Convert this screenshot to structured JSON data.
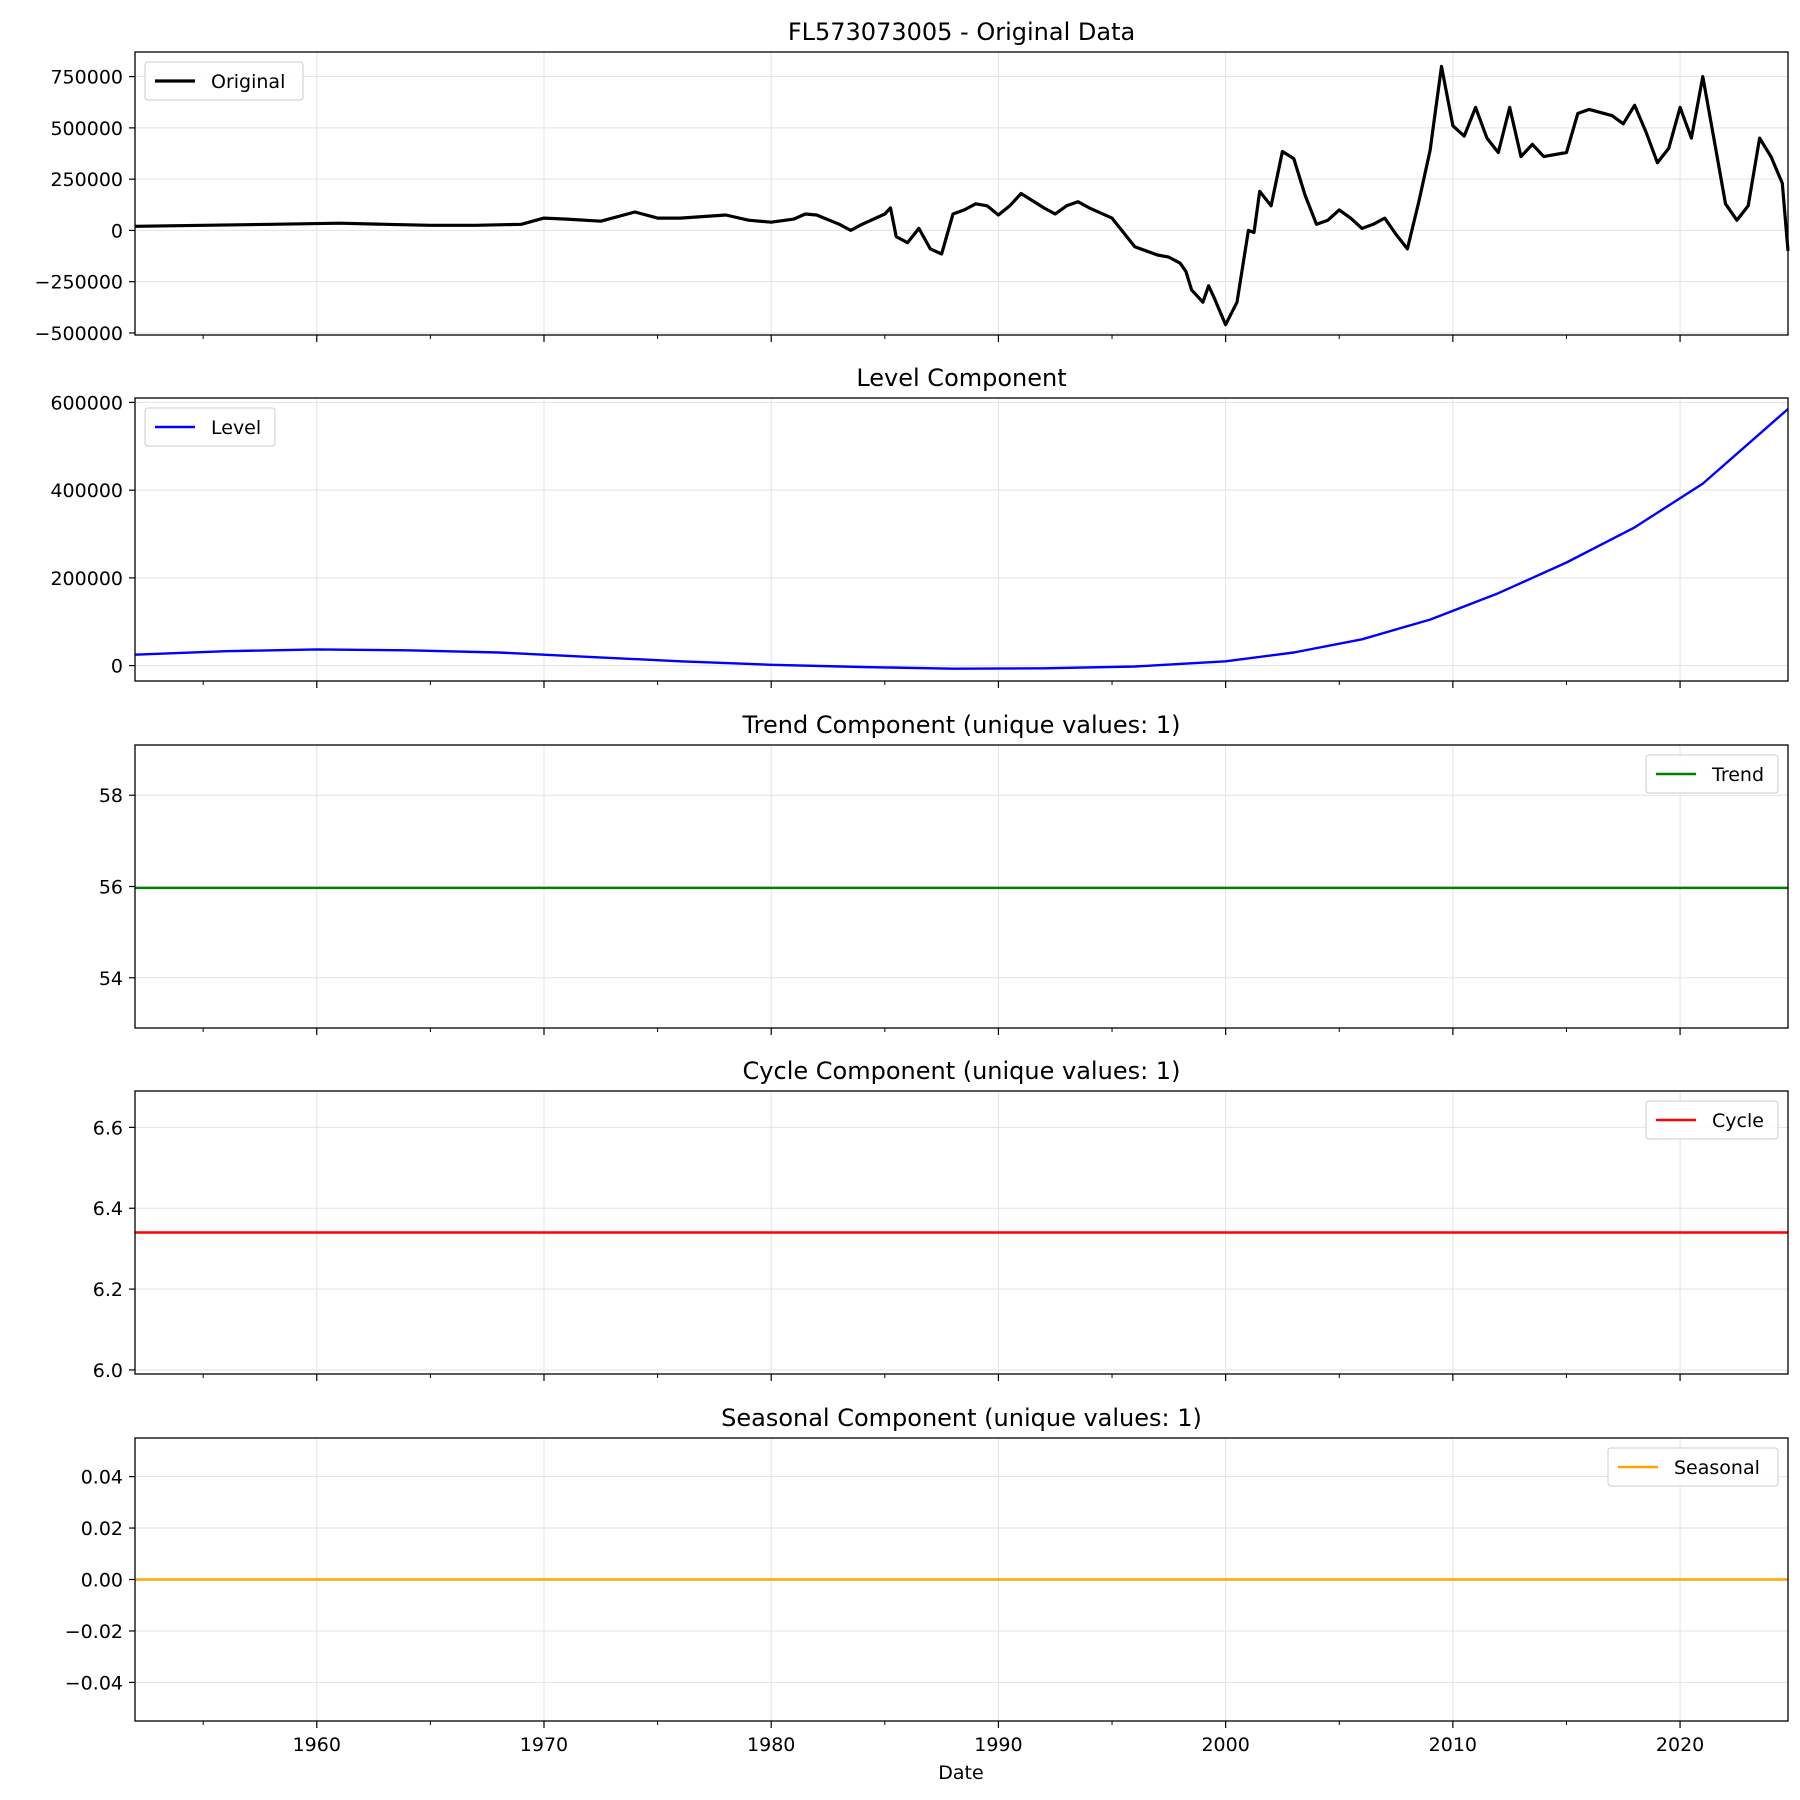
{
  "figure": {
    "xlabel": "Date",
    "x_range": [
      1952.0,
      2024.75
    ],
    "x_ticks": [
      1960,
      1970,
      1980,
      1990,
      2000,
      2010,
      2020
    ],
    "x_minor_ticks": [
      1955,
      1965,
      1975,
      1985,
      1995,
      2005,
      2015
    ]
  },
  "chart_data": [
    {
      "type": "line",
      "title": "FL573073005 - Original Data",
      "xlabel": "",
      "ylabel": "",
      "ylim": [
        -510000,
        870000
      ],
      "y_ticks": [
        -500000,
        -250000,
        0,
        250000,
        500000,
        750000
      ],
      "y_tick_labels": [
        "−500000",
        "−250000",
        "0",
        "250000",
        "500000",
        "750000"
      ],
      "grid": true,
      "legend_position": "upper left",
      "series": [
        {
          "name": "Original",
          "color": "#000000",
          "x": [
            1952.0,
            1955.0,
            1958.0,
            1961.0,
            1963.0,
            1965.0,
            1967.0,
            1969.0,
            1970.0,
            1971.0,
            1972.5,
            1974.0,
            1975.0,
            1976.0,
            1978.0,
            1979.0,
            1980.0,
            1981.0,
            1981.5,
            1982.0,
            1983.0,
            1983.5,
            1984.0,
            1985.0,
            1985.25,
            1985.5,
            1986.0,
            1986.5,
            1987.0,
            1987.5,
            1988.0,
            1988.5,
            1989.0,
            1989.5,
            1990.0,
            1990.5,
            1991.0,
            1992.0,
            1992.5,
            1993.0,
            1993.5,
            1994.0,
            1995.0,
            1996.0,
            1997.0,
            1997.5,
            1998.0,
            1998.25,
            1998.5,
            1999.0,
            1999.25,
            1999.5,
            2000.0,
            2000.5,
            2001.0,
            2001.25,
            2001.5,
            2002.0,
            2002.5,
            2003.0,
            2003.5,
            2004.0,
            2004.5,
            2005.0,
            2005.5,
            2006.0,
            2006.5,
            2007.0,
            2007.5,
            2008.0,
            2008.5,
            2009.0,
            2009.5,
            2010.0,
            2010.5,
            2011.0,
            2011.5,
            2012.0,
            2012.5,
            2013.0,
            2013.5,
            2014.0,
            2015.0,
            2015.5,
            2016.0,
            2017.0,
            2017.5,
            2018.0,
            2018.5,
            2019.0,
            2019.5,
            2020.0,
            2020.5,
            2021.0,
            2021.5,
            2022.0,
            2022.5,
            2023.0,
            2023.5,
            2024.0,
            2024.5,
            2024.75
          ],
          "values": [
            20000,
            25000,
            30000,
            35000,
            30000,
            25000,
            25000,
            30000,
            60000,
            55000,
            45000,
            90000,
            60000,
            60000,
            75000,
            50000,
            40000,
            55000,
            80000,
            75000,
            30000,
            0,
            30000,
            80000,
            110000,
            -30000,
            -60000,
            10000,
            -90000,
            -115000,
            80000,
            100000,
            130000,
            120000,
            75000,
            120000,
            180000,
            110000,
            80000,
            120000,
            140000,
            110000,
            60000,
            -80000,
            -120000,
            -130000,
            -160000,
            -200000,
            -290000,
            -350000,
            -270000,
            -330000,
            -460000,
            -350000,
            0,
            -10000,
            190000,
            120000,
            385000,
            350000,
            170000,
            30000,
            50000,
            100000,
            60000,
            10000,
            30000,
            60000,
            -20000,
            -90000,
            140000,
            390000,
            800000,
            510000,
            460000,
            600000,
            450000,
            380000,
            600000,
            360000,
            420000,
            360000,
            380000,
            570000,
            590000,
            560000,
            520000,
            610000,
            480000,
            330000,
            400000,
            600000,
            450000,
            750000,
            440000,
            130000,
            50000,
            120000,
            450000,
            360000,
            230000,
            -100000
          ]
        }
      ]
    },
    {
      "type": "line",
      "title": "Level Component",
      "xlabel": "",
      "ylabel": "",
      "ylim": [
        -35000,
        610000
      ],
      "y_ticks": [
        0,
        200000,
        400000,
        600000
      ],
      "y_tick_labels": [
        "0",
        "200000",
        "400000",
        "600000"
      ],
      "grid": true,
      "legend_position": "upper left",
      "series": [
        {
          "name": "Level",
          "color": "#0000ff",
          "x": [
            1952,
            1956,
            1960,
            1964,
            1968,
            1972,
            1976,
            1980,
            1984,
            1988,
            1992,
            1996,
            2000,
            2003,
            2006,
            2009,
            2012,
            2015,
            2018,
            2021,
            2024.75
          ],
          "values": [
            25000,
            33000,
            37000,
            35000,
            30000,
            20000,
            10000,
            2000,
            -3000,
            -7000,
            -6000,
            -2000,
            10000,
            30000,
            60000,
            105000,
            165000,
            235000,
            315000,
            415000,
            585000
          ]
        }
      ]
    },
    {
      "type": "line",
      "title": "Trend Component (unique values: 1)",
      "xlabel": "",
      "ylabel": "",
      "ylim": [
        52.9,
        59.1
      ],
      "y_ticks": [
        54,
        56,
        58
      ],
      "y_tick_labels": [
        "54",
        "56",
        "58"
      ],
      "grid": true,
      "legend_position": "upper right",
      "series": [
        {
          "name": "Trend",
          "color": "#008000",
          "x": [
            1952.0,
            2024.75
          ],
          "values": [
            55.97,
            55.97
          ]
        }
      ]
    },
    {
      "type": "line",
      "title": "Cycle Component (unique values: 1)",
      "xlabel": "",
      "ylabel": "",
      "ylim": [
        5.99,
        6.69
      ],
      "y_ticks": [
        6.0,
        6.2,
        6.4,
        6.6
      ],
      "y_tick_labels": [
        "6.0",
        "6.2",
        "6.4",
        "6.6"
      ],
      "grid": true,
      "legend_position": "upper right",
      "series": [
        {
          "name": "Cycle",
          "color": "#ff0000",
          "x": [
            1952.0,
            2024.75
          ],
          "values": [
            6.34,
            6.34
          ]
        }
      ]
    },
    {
      "type": "line",
      "title": "Seasonal Component (unique values: 1)",
      "xlabel": "",
      "ylabel": "",
      "ylim": [
        -0.055,
        0.055
      ],
      "y_ticks": [
        -0.04,
        -0.02,
        0.0,
        0.02,
        0.04
      ],
      "y_tick_labels": [
        "−0.04",
        "−0.02",
        "0.00",
        "0.02",
        "0.04"
      ],
      "grid": true,
      "legend_position": "upper right",
      "series": [
        {
          "name": "Seasonal",
          "color": "#ffa500",
          "x": [
            1952.0,
            2024.75
          ],
          "values": [
            0.0,
            0.0
          ]
        }
      ]
    }
  ]
}
